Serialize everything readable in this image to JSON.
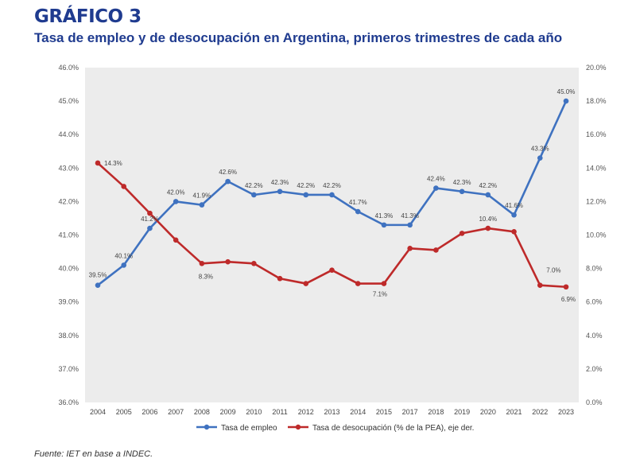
{
  "figure_label": "GRÁFICO 3",
  "title": "Tasa de empleo y de desocupación en Argentina, primeros trimestres de cada año",
  "source": "Fuente: IET en base a INDEC.",
  "chart_data": {
    "type": "line",
    "categories": [
      "2004",
      "2005",
      "2006",
      "2007",
      "2008",
      "2009",
      "2010",
      "2011",
      "2012",
      "2013",
      "2014",
      "2015",
      "2017",
      "2018",
      "2019",
      "2020",
      "2021",
      "2022",
      "2023"
    ],
    "left_axis": {
      "min": 36,
      "max": 46,
      "step": 1,
      "tick_labels": [
        "36.0%",
        "37.0%",
        "38.0%",
        "39.0%",
        "40.0%",
        "41.0%",
        "42.0%",
        "43.0%",
        "44.0%",
        "45.0%",
        "46.0%"
      ]
    },
    "right_axis": {
      "min": 0,
      "max": 20,
      "step": 2,
      "tick_labels": [
        "0.0%",
        "2.0%",
        "4.0%",
        "6.0%",
        "8.0%",
        "10.0%",
        "12.0%",
        "14.0%",
        "16.0%",
        "18.0%",
        "20.0%"
      ]
    },
    "series": [
      {
        "name": "Tasa de empleo",
        "axis": "left",
        "color": "#3f72c0",
        "values": [
          39.5,
          40.1,
          41.2,
          42.0,
          41.9,
          42.6,
          42.2,
          42.3,
          42.2,
          42.2,
          41.7,
          41.3,
          41.3,
          42.4,
          42.3,
          42.2,
          41.6,
          43.3,
          45.0
        ],
        "labels": [
          "39.5%",
          "40.1%",
          "41.2%",
          "42.0%",
          "41.9%",
          "42.6%",
          "42.2%",
          "42.3%",
          "42.2%",
          "42.2%",
          "41.7%",
          "41.3%",
          "41.3%",
          "42.4%",
          "42.3%",
          "42.2%",
          "41.6%",
          "43.3%",
          "45.0%"
        ]
      },
      {
        "name": "Tasa de desocupación (% de la PEA), eje der.",
        "axis": "right",
        "color": "#be2a2a",
        "values": [
          14.3,
          12.9,
          11.3,
          9.7,
          8.3,
          8.4,
          8.3,
          7.4,
          7.1,
          7.9,
          7.1,
          7.1,
          9.2,
          9.1,
          10.1,
          10.4,
          10.2,
          7.0,
          6.9
        ],
        "annotations": [
          {
            "index": 0,
            "text": "14.3%"
          },
          {
            "index": 4,
            "text": "8.3%"
          },
          {
            "index": 11,
            "text": "7.1%"
          },
          {
            "index": 15,
            "text": "10.4%"
          },
          {
            "index": 17,
            "text": "7.0%"
          },
          {
            "index": 18,
            "text": "6.9%"
          }
        ]
      }
    ],
    "legend_position": "bottom-center",
    "grid": false
  }
}
